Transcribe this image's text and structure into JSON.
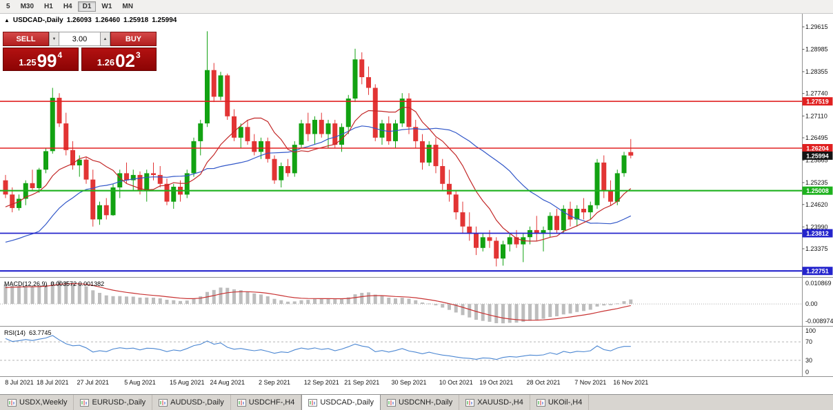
{
  "toolbar": {
    "buttons": [
      "5",
      "M30",
      "H1",
      "H4",
      "D1",
      "W1",
      "MN"
    ],
    "active": "D1"
  },
  "chart_header": {
    "direction_icon": "▲",
    "symbol": "USDCAD-,Daily",
    "open": "1.26093",
    "high": "1.26460",
    "low": "1.25918",
    "close": "1.25994"
  },
  "trade_panel": {
    "sell_label": "SELL",
    "buy_label": "BUY",
    "volume": "3.00",
    "spin_down": "▼",
    "spin_up": "▲",
    "sell_price": {
      "prefix": "1.25",
      "big": "99",
      "sup": "4"
    },
    "buy_price": {
      "prefix": "1.26",
      "big": "02",
      "sup": "3"
    }
  },
  "chart_data": {
    "type": "candlestick",
    "title": "USDCAD-,Daily",
    "price_range": [
      1.2262,
      1.2975
    ],
    "up_color": "#12a212",
    "down_color": "#e23434",
    "ma_fast": {
      "period": 10,
      "color": "#c22626"
    },
    "ma_slow": {
      "period": 24,
      "color": "#3056c8"
    },
    "y_axis_labels": [
      "1.29615",
      "1.28985",
      "1.28355",
      "1.27740",
      "1.27110",
      "1.26495",
      "1.25865",
      "1.25235",
      "1.24620",
      "1.23990",
      "1.23375"
    ],
    "levels": [
      {
        "value": 1.27519,
        "label": "1.27519",
        "color": "#e02020",
        "lw": 1.6
      },
      {
        "value": 1.26204,
        "label": "1.26204",
        "color": "#e02020",
        "lw": 1.6
      },
      {
        "value": 1.25994,
        "label": "1.25994",
        "color": "#141414",
        "lw": 0
      },
      {
        "value": 1.25008,
        "label": "1.25008",
        "color": "#1db11d",
        "lw": 2.2
      },
      {
        "value": 1.23812,
        "label": "1.23812",
        "color": "#2424cc",
        "lw": 1.8
      },
      {
        "value": 1.22751,
        "label": "1.22751",
        "color": "#2424cc",
        "lw": 2.2
      }
    ],
    "x_labels": [
      {
        "i": 0,
        "t": "8 Jul 2021"
      },
      {
        "i": 7,
        "t": "18 Jul 2021"
      },
      {
        "i": 13,
        "t": "27 Jul 2021"
      },
      {
        "i": 20,
        "t": "5 Aug 2021"
      },
      {
        "i": 27,
        "t": "15 Aug 2021"
      },
      {
        "i": 33,
        "t": "24 Aug 2021"
      },
      {
        "i": 40,
        "t": "2 Sep 2021"
      },
      {
        "i": 47,
        "t": "12 Sep 2021"
      },
      {
        "i": 53,
        "t": "21 Sep 2021"
      },
      {
        "i": 60,
        "t": "30 Sep 2021"
      },
      {
        "i": 67,
        "t": "10 Oct 2021"
      },
      {
        "i": 73,
        "t": "19 Oct 2021"
      },
      {
        "i": 80,
        "t": "28 Oct 2021"
      },
      {
        "i": 87,
        "t": "7 Nov 2021"
      },
      {
        "i": 93,
        "t": "16 Nov 2021"
      }
    ],
    "warmup_closes": [
      1.215,
      1.2185,
      1.217,
      1.2225,
      1.227,
      1.225,
      1.2305,
      1.234,
      1.232,
      1.2375,
      1.241,
      1.239,
      1.244,
      1.2465,
      1.245,
      1.249,
      1.2515,
      1.2528
    ],
    "ohlc": [
      [
        1.253,
        1.2545,
        1.248,
        1.249
      ],
      [
        1.249,
        1.251,
        1.244,
        1.2452
      ],
      [
        1.2452,
        1.249,
        1.2445,
        1.2478
      ],
      [
        1.2478,
        1.253,
        1.246,
        1.2522
      ],
      [
        1.2522,
        1.256,
        1.25,
        1.2508
      ],
      [
        1.2508,
        1.2565,
        1.2495,
        1.256
      ],
      [
        1.256,
        1.262,
        1.255,
        1.2612
      ],
      [
        1.2612,
        1.279,
        1.2605,
        1.2762
      ],
      [
        1.2762,
        1.2775,
        1.268,
        1.269
      ],
      [
        1.269,
        1.272,
        1.26,
        1.2615
      ],
      [
        1.2615,
        1.264,
        1.256,
        1.2572
      ],
      [
        1.2572,
        1.26,
        1.254,
        1.2588
      ],
      [
        1.2588,
        1.2595,
        1.252,
        1.2532
      ],
      [
        1.2532,
        1.256,
        1.24,
        1.242
      ],
      [
        1.242,
        1.247,
        1.2405,
        1.246
      ],
      [
        1.246,
        1.248,
        1.242,
        1.2432
      ],
      [
        1.2432,
        1.252,
        1.243,
        1.251
      ],
      [
        1.251,
        1.256,
        1.248,
        1.255
      ],
      [
        1.255,
        1.258,
        1.252,
        1.253
      ],
      [
        1.253,
        1.256,
        1.25,
        1.2545
      ],
      [
        1.2545,
        1.2555,
        1.249,
        1.2502
      ],
      [
        1.2502,
        1.256,
        1.247,
        1.255
      ],
      [
        1.255,
        1.258,
        1.253,
        1.2545
      ],
      [
        1.2545,
        1.257,
        1.251,
        1.252
      ],
      [
        1.252,
        1.2535,
        1.246,
        1.247
      ],
      [
        1.247,
        1.252,
        1.245,
        1.2512
      ],
      [
        1.2512,
        1.253,
        1.247,
        1.249
      ],
      [
        1.249,
        1.256,
        1.248,
        1.255
      ],
      [
        1.255,
        1.265,
        1.254,
        1.264
      ],
      [
        1.264,
        1.27,
        1.26,
        1.269
      ],
      [
        1.269,
        1.2949,
        1.268,
        1.284
      ],
      [
        1.284,
        1.286,
        1.275,
        1.2765
      ],
      [
        1.2765,
        1.2835,
        1.2755,
        1.2825
      ],
      [
        1.2825,
        1.283,
        1.27,
        1.271
      ],
      [
        1.271,
        1.273,
        1.264,
        1.265
      ],
      [
        1.265,
        1.269,
        1.262,
        1.268
      ],
      [
        1.268,
        1.27,
        1.263,
        1.264
      ],
      [
        1.264,
        1.266,
        1.26,
        1.261
      ],
      [
        1.261,
        1.265,
        1.259,
        1.264
      ],
      [
        1.264,
        1.265,
        1.258,
        1.259
      ],
      [
        1.259,
        1.26,
        1.252,
        1.253
      ],
      [
        1.253,
        1.258,
        1.251,
        1.257
      ],
      [
        1.257,
        1.259,
        1.254,
        1.255
      ],
      [
        1.255,
        1.264,
        1.254,
        1.263
      ],
      [
        1.263,
        1.27,
        1.262,
        1.269
      ],
      [
        1.269,
        1.272,
        1.264,
        1.266
      ],
      [
        1.266,
        1.271,
        1.263,
        1.27
      ],
      [
        1.27,
        1.272,
        1.265,
        1.266
      ],
      [
        1.266,
        1.27,
        1.262,
        1.269
      ],
      [
        1.269,
        1.27,
        1.262,
        1.263
      ],
      [
        1.263,
        1.269,
        1.261,
        1.268
      ],
      [
        1.268,
        1.277,
        1.266,
        1.276
      ],
      [
        1.276,
        1.29,
        1.275,
        1.287
      ],
      [
        1.287,
        1.289,
        1.28,
        1.282
      ],
      [
        1.282,
        1.285,
        1.277,
        1.279
      ],
      [
        1.279,
        1.28,
        1.264,
        1.265
      ],
      [
        1.265,
        1.27,
        1.263,
        1.269
      ],
      [
        1.269,
        1.271,
        1.263,
        1.264
      ],
      [
        1.264,
        1.27,
        1.262,
        1.269
      ],
      [
        1.269,
        1.2775,
        1.268,
        1.276
      ],
      [
        1.276,
        1.2775,
        1.266,
        1.268
      ],
      [
        1.268,
        1.27,
        1.262,
        1.264
      ],
      [
        1.264,
        1.266,
        1.256,
        1.258
      ],
      [
        1.258,
        1.264,
        1.257,
        1.263
      ],
      [
        1.263,
        1.265,
        1.255,
        1.257
      ],
      [
        1.257,
        1.259,
        1.25,
        1.252
      ],
      [
        1.252,
        1.256,
        1.247,
        1.249
      ],
      [
        1.249,
        1.25,
        1.242,
        1.244
      ],
      [
        1.244,
        1.247,
        1.238,
        1.24
      ],
      [
        1.24,
        1.244,
        1.236,
        1.238
      ],
      [
        1.238,
        1.24,
        1.232,
        1.234
      ],
      [
        1.234,
        1.238,
        1.233,
        1.237
      ],
      [
        1.237,
        1.239,
        1.234,
        1.236
      ],
      [
        1.236,
        1.237,
        1.2288,
        1.231
      ],
      [
        1.231,
        1.236,
        1.229,
        1.235
      ],
      [
        1.235,
        1.238,
        1.233,
        1.237
      ],
      [
        1.237,
        1.239,
        1.234,
        1.235
      ],
      [
        1.235,
        1.238,
        1.23,
        1.237
      ],
      [
        1.237,
        1.24,
        1.235,
        1.239
      ],
      [
        1.239,
        1.243,
        1.236,
        1.238
      ],
      [
        1.238,
        1.24,
        1.233,
        1.239
      ],
      [
        1.239,
        1.244,
        1.237,
        1.243
      ],
      [
        1.243,
        1.245,
        1.238,
        1.239
      ],
      [
        1.239,
        1.246,
        1.238,
        1.245
      ],
      [
        1.245,
        1.247,
        1.24,
        1.242
      ],
      [
        1.242,
        1.246,
        1.24,
        1.245
      ],
      [
        1.245,
        1.248,
        1.242,
        1.244
      ],
      [
        1.244,
        1.247,
        1.242,
        1.246
      ],
      [
        1.246,
        1.259,
        1.245,
        1.258
      ],
      [
        1.258,
        1.26,
        1.248,
        1.25
      ],
      [
        1.25,
        1.253,
        1.246,
        1.247
      ],
      [
        1.247,
        1.256,
        1.246,
        1.255
      ],
      [
        1.255,
        1.261,
        1.254,
        1.26
      ],
      [
        1.26093,
        1.2646,
        1.25918,
        1.25994
      ]
    ],
    "macd": {
      "label": "MACD(12,26,9)",
      "values_text": "0.003572 0.001382",
      "axis": [
        "0.010869",
        "0.00",
        "-0.008974"
      ],
      "hist_color": "#bdbdbd",
      "signal_color": "#c83232"
    },
    "rsi": {
      "label": "RSI(14)",
      "value_text": "63.7745",
      "axis_labels": [
        "100",
        "70",
        "30",
        "0"
      ],
      "guide_levels": [
        70,
        30
      ],
      "line_color": "#4a86d2"
    }
  },
  "bottom_tabs": {
    "items": [
      "USDX,Weekly",
      "EURUSD-,Daily",
      "AUDUSD-,Daily",
      "USDCHF-,H4",
      "USDCAD-,Daily",
      "USDCNH-,Daily",
      "XAUUSD-,H4",
      "UKOil-,H4"
    ],
    "active_index": 4
  }
}
